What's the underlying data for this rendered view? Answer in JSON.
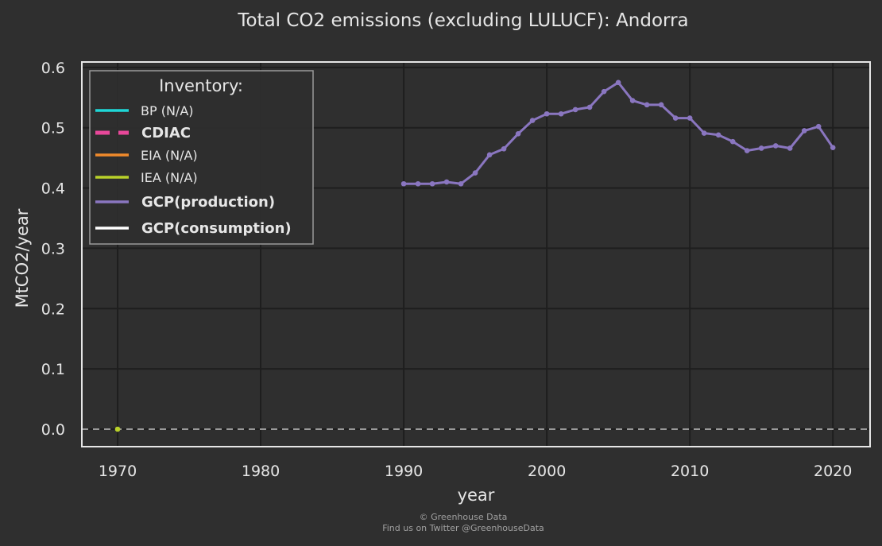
{
  "chart_data": {
    "type": "line",
    "title": "Total CO2 emissions (excluding LULUCF): Andorra",
    "xlabel": "year",
    "ylabel": "MtCO2/year",
    "xlim": [
      1967.5,
      2022.6
    ],
    "ylim": [
      -0.029,
      0.609
    ],
    "xticks": [
      1970,
      1980,
      1990,
      2000,
      2010,
      2020
    ],
    "xtick_labels": [
      "1970",
      "1980",
      "1990",
      "2000",
      "2010",
      "2020"
    ],
    "yticks": [
      0.0,
      0.1,
      0.2,
      0.3,
      0.4,
      0.5,
      0.6
    ],
    "ytick_labels": [
      "0.0",
      "0.1",
      "0.2",
      "0.3",
      "0.4",
      "0.5",
      "0.6"
    ],
    "grid": true,
    "zero_line": {
      "y": 0.0,
      "style": "dashed",
      "color": "#9a9a9a"
    },
    "legend": {
      "title": "Inventory:",
      "placement": "top-left",
      "entries": [
        {
          "label": "BP (N/A)",
          "color": "#1fd6d6",
          "style": "solid",
          "bold": false
        },
        {
          "label": "CDIAC",
          "color": "#e8489a",
          "style": "dashed",
          "bold": true
        },
        {
          "label": "EIA (N/A)",
          "color": "#f08a2b",
          "style": "solid",
          "bold": false
        },
        {
          "label": "IEA (N/A)",
          "color": "#b9d12a",
          "style": "solid",
          "bold": false
        },
        {
          "label": "GCP(production)",
          "color": "#8a76c0",
          "style": "solid",
          "bold": true
        },
        {
          "label": "GCP(consumption)",
          "color": "#ffffff",
          "style": "solid",
          "bold": true
        }
      ]
    },
    "series": [
      {
        "name": "GCP(production)",
        "color": "#8a76c0",
        "x": [
          1990,
          1991,
          1992,
          1993,
          1994,
          1995,
          1996,
          1997,
          1998,
          1999,
          2000,
          2001,
          2002,
          2003,
          2004,
          2005,
          2006,
          2007,
          2008,
          2009,
          2010,
          2011,
          2012,
          2013,
          2014,
          2015,
          2016,
          2017,
          2018,
          2019,
          2020
        ],
        "y": [
          0.407,
          0.407,
          0.407,
          0.41,
          0.407,
          0.425,
          0.455,
          0.465,
          0.49,
          0.512,
          0.523,
          0.523,
          0.53,
          0.534,
          0.56,
          0.575,
          0.545,
          0.538,
          0.538,
          0.516,
          0.516,
          0.491,
          0.488,
          0.477,
          0.462,
          0.466,
          0.47,
          0.466,
          0.495,
          0.502,
          0.467
        ]
      },
      {
        "name": "IEA (N/A)",
        "color": "#b9d12a",
        "x": [
          1970
        ],
        "y": [
          0.0
        ]
      }
    ]
  },
  "credits": {
    "line1": "© Greenhouse Data",
    "line2": "Find us on Twitter @GreenhouseData"
  }
}
